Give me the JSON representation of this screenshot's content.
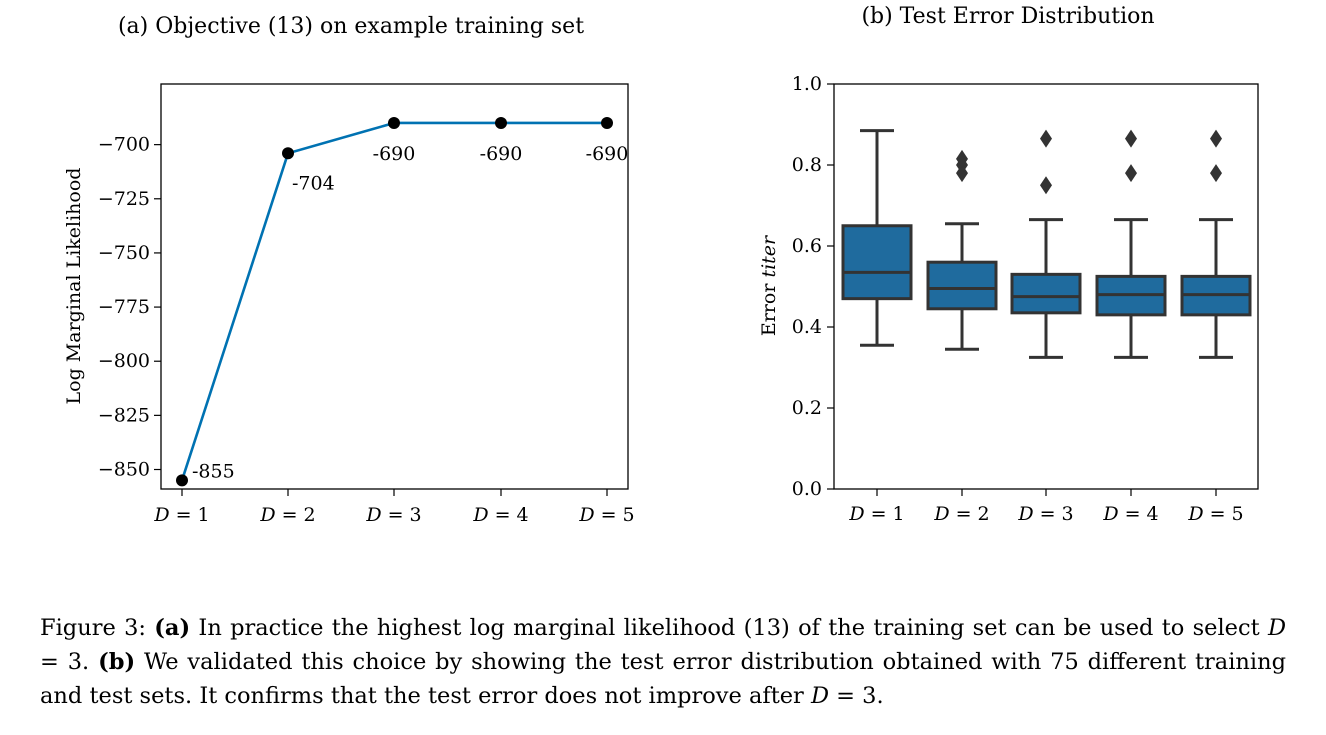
{
  "chart_data": [
    {
      "type": "line",
      "title": "(a) Objective (13) on example training set",
      "ylabel": "Log Marginal Likelihood",
      "xlabel": "",
      "categories": [
        "D = 1",
        "D = 2",
        "D = 3",
        "D = 4",
        "D = 5"
      ],
      "values": [
        -855,
        -704,
        -690,
        -690,
        -690
      ],
      "data_labels": [
        "-855",
        "-704",
        "-690",
        "-690",
        "-690"
      ],
      "yticks": [
        -700,
        -725,
        -750,
        -775,
        -800,
        -825,
        -850
      ],
      "ytick_labels": [
        "−700",
        "−725",
        "−750",
        "−775",
        "−800",
        "−825",
        "−850"
      ],
      "ylim": [
        -859,
        -672
      ],
      "grid": false,
      "line_color": "#0072b2",
      "marker_color": "#000000"
    },
    {
      "type": "box",
      "title": "(b) Test Error Distribution",
      "ylabel_prefix": "Error ",
      "ylabel_italic": "titer",
      "xlabel": "",
      "categories": [
        "D = 1",
        "D = 2",
        "D = 3",
        "D = 4",
        "D = 5"
      ],
      "boxes": [
        {
          "whisker_low": 0.355,
          "q1": 0.47,
          "median": 0.535,
          "q3": 0.65,
          "whisker_high": 0.885,
          "outliers": []
        },
        {
          "whisker_low": 0.345,
          "q1": 0.445,
          "median": 0.495,
          "q3": 0.56,
          "whisker_high": 0.655,
          "outliers": [
            0.78,
            0.8,
            0.815
          ]
        },
        {
          "whisker_low": 0.325,
          "q1": 0.435,
          "median": 0.475,
          "q3": 0.53,
          "whisker_high": 0.665,
          "outliers": [
            0.75,
            0.865
          ]
        },
        {
          "whisker_low": 0.325,
          "q1": 0.43,
          "median": 0.48,
          "q3": 0.525,
          "whisker_high": 0.665,
          "outliers": [
            0.78,
            0.865
          ]
        },
        {
          "whisker_low": 0.325,
          "q1": 0.43,
          "median": 0.48,
          "q3": 0.525,
          "whisker_high": 0.665,
          "outliers": [
            0.78,
            0.865
          ]
        }
      ],
      "yticks": [
        0.0,
        0.2,
        0.4,
        0.6,
        0.8,
        1.0
      ],
      "ytick_labels": [
        "0.0",
        "0.2",
        "0.4",
        "0.6",
        "0.8",
        "1.0"
      ],
      "ylim": [
        0.0,
        1.0
      ],
      "grid": false,
      "box_color": "#1f6b9e",
      "line_color": "#333333"
    }
  ],
  "caption": {
    "figure_label": "Figure 3: ",
    "a_label": "(a)",
    "a_text_1": " In practice the highest log marginal likelihood (13) of the training set can be used to select ",
    "a_math": "D",
    "a_text_2": " = 3. ",
    "b_label": "(b)",
    "b_text_1": " We validated this choice by showing the test error distribution obtained with 75 different training and test sets. It confirms that the test error does not improve after ",
    "b_math": "D",
    "b_text_2": " = 3."
  }
}
